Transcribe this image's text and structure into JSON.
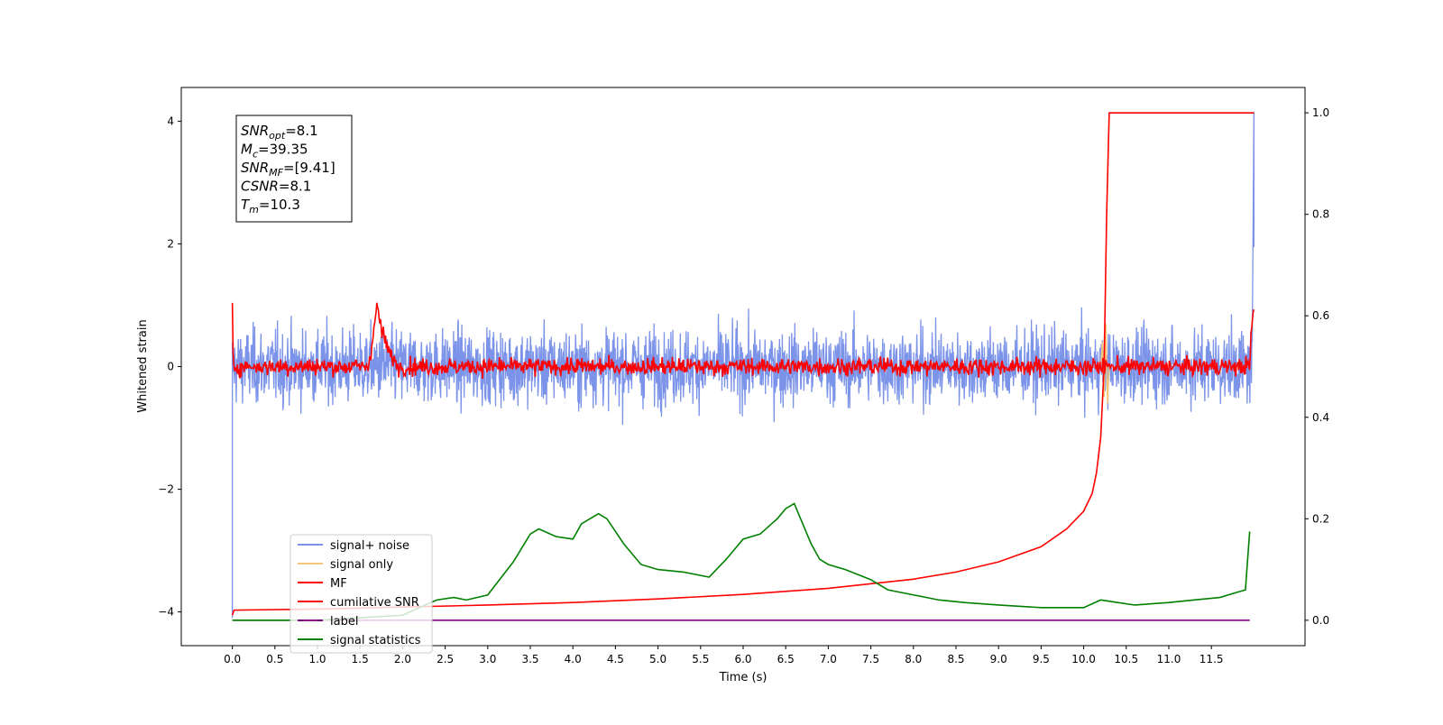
{
  "chart_data": {
    "type": "line",
    "xlabel": "Time (s)",
    "ylabel": "Whitened strain",
    "xlim": [
      -0.6,
      12.6
    ],
    "ylim": [
      -4.55,
      4.55
    ],
    "y2lim": [
      -0.05,
      1.05
    ],
    "x_ticks": [
      0.0,
      0.5,
      1.0,
      1.5,
      2.0,
      2.5,
      3.0,
      3.5,
      4.0,
      4.5,
      5.0,
      5.5,
      6.0,
      6.5,
      7.0,
      7.5,
      8.0,
      8.5,
      9.0,
      9.5,
      10.0,
      10.5,
      11.0,
      11.5
    ],
    "x_tick_labels": [
      "0.0",
      "0.5",
      "1.0",
      "1.5",
      "2.0",
      "2.5",
      "3.0",
      "3.5",
      "4.0",
      "4.5",
      "5.0",
      "5.5",
      "6.0",
      "6.5",
      "7.0",
      "7.5",
      "8.0",
      "8.5",
      "9.0",
      "9.5",
      "10.0",
      "10.5",
      "11.0",
      "11.5"
    ],
    "y_ticks": [
      4,
      2,
      0,
      -2,
      -4
    ],
    "y_tick_labels": [
      "4",
      "2",
      "0",
      "−2",
      "−4"
    ],
    "y2_ticks": [
      1.0,
      0.8,
      0.6,
      0.4,
      0.2,
      0.0
    ],
    "y2_tick_labels": [
      "1.0",
      "0.8",
      "0.6",
      "0.4",
      "0.2",
      "0.0"
    ],
    "grid": false,
    "legend_position": "lower-left",
    "annotation": {
      "lines": [
        {
          "base": "SNR",
          "sub": "opt",
          "value": "=8.1"
        },
        {
          "base": "M",
          "sub": "c",
          "value": "=39.35"
        },
        {
          "base": "SNR",
          "sub": "MF",
          "value": "=[9.41]"
        },
        {
          "base": "CSNR",
          "sub": "",
          "value": "=8.1"
        },
        {
          "base": "T",
          "sub": "m",
          "value": "=10.3"
        }
      ]
    },
    "series": [
      {
        "name": "signal+ noise",
        "color": "#7b93e8",
        "axis": "left",
        "description_values": {
          "typical_range": [
            -0.9,
            0.9
          ],
          "max_spike": 1.3,
          "start_value": -4.1,
          "end_value": 4.15
        }
      },
      {
        "name": "signal only",
        "color": "#f5c97a",
        "axis": "left",
        "x": [
          10.2,
          10.22,
          10.24,
          10.26,
          10.28,
          10.3
        ],
        "y": [
          0.0,
          0.4,
          -0.5,
          0.7,
          -0.6,
          0.0
        ]
      },
      {
        "name": "MF",
        "color": "#ff0000",
        "axis": "left",
        "x": [
          0.0,
          0.01,
          0.05,
          1.6,
          1.7,
          1.75,
          1.85,
          1.95,
          2.1,
          11.95,
          11.97,
          12.0
        ],
        "y": [
          0.95,
          0.0,
          0.0,
          0.0,
          1.0,
          0.6,
          0.2,
          0.0,
          0.0,
          0.0,
          0.6,
          0.95
        ]
      },
      {
        "name": "cumilative SNR",
        "color": "#ff0000",
        "axis": "right",
        "x": [
          0.0,
          0.02,
          1.0,
          2.0,
          3.0,
          4.0,
          5.0,
          6.0,
          7.0,
          8.0,
          8.5,
          9.0,
          9.5,
          9.8,
          10.0,
          10.1,
          10.15,
          10.2,
          10.24,
          10.27,
          10.3,
          11.5,
          12.0
        ],
        "y": [
          0.01,
          0.02,
          0.022,
          0.026,
          0.03,
          0.035,
          0.042,
          0.051,
          0.063,
          0.081,
          0.095,
          0.115,
          0.145,
          0.18,
          0.215,
          0.25,
          0.29,
          0.36,
          0.5,
          0.8,
          1.0,
          1.0,
          1.0
        ]
      },
      {
        "name": "label",
        "color": "#800080",
        "axis": "right",
        "x": [
          0.0,
          11.95
        ],
        "y": [
          0.0,
          0.0
        ]
      },
      {
        "name": "signal statistics",
        "color": "#008000",
        "axis": "right",
        "x": [
          0.0,
          0.5,
          1.0,
          1.5,
          2.0,
          2.4,
          2.6,
          2.75,
          3.0,
          3.3,
          3.5,
          3.6,
          3.8,
          4.0,
          4.1,
          4.2,
          4.3,
          4.4,
          4.6,
          4.8,
          5.0,
          5.3,
          5.6,
          5.8,
          6.0,
          6.2,
          6.4,
          6.5,
          6.6,
          6.7,
          6.8,
          6.9,
          7.0,
          7.2,
          7.5,
          7.7,
          8.0,
          8.3,
          8.6,
          9.0,
          9.5,
          10.0,
          10.2,
          10.4,
          10.6,
          11.0,
          11.3,
          11.6,
          11.8,
          11.9,
          11.95
        ],
        "y": [
          0.0,
          0.0,
          0.0,
          0.005,
          0.01,
          0.04,
          0.045,
          0.04,
          0.05,
          0.115,
          0.17,
          0.18,
          0.165,
          0.16,
          0.19,
          0.2,
          0.21,
          0.2,
          0.15,
          0.11,
          0.1,
          0.095,
          0.085,
          0.12,
          0.16,
          0.17,
          0.2,
          0.22,
          0.23,
          0.19,
          0.15,
          0.12,
          0.11,
          0.1,
          0.08,
          0.06,
          0.05,
          0.04,
          0.035,
          0.03,
          0.025,
          0.025,
          0.04,
          0.035,
          0.03,
          0.035,
          0.04,
          0.045,
          0.055,
          0.06,
          0.175
        ]
      }
    ]
  }
}
